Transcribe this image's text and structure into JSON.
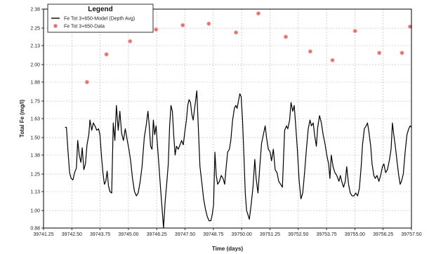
{
  "chart_data": {
    "type": "scatter",
    "title": "",
    "xlabel": "Time (days)",
    "ylabel": "Total Fe (mg/l)",
    "xlim": [
      39741.25,
      39757.5
    ],
    "ylim": [
      0.88,
      2.38
    ],
    "xticks": [
      39741.25,
      39742.5,
      39743.75,
      39745.0,
      39746.25,
      39747.5,
      39748.75,
      39750.0,
      39751.25,
      39752.5,
      39753.75,
      39755.0,
      39756.25,
      39757.5
    ],
    "xtick_labels": [
      "39741.25",
      "39742.50",
      "39743.75",
      "39745.00",
      "39746.25",
      "39747.50",
      "39748.75",
      "39750.00",
      "39751.25",
      "39752.50",
      "39753.75",
      "39755.00",
      "39756.25",
      "39757.50"
    ],
    "yticks": [
      0.88,
      1.0,
      1.13,
      1.25,
      1.38,
      1.5,
      1.63,
      1.75,
      1.88,
      2.0,
      2.13,
      2.25,
      2.38
    ],
    "ytick_labels": [
      "0.88",
      "1.00",
      "1.13",
      "1.25",
      "1.38",
      "1.50",
      "1.63",
      "1.75",
      "1.88",
      "2.00",
      "2.13",
      "2.25",
      "2.38"
    ],
    "grid": true,
    "legend": {
      "title": "Legend",
      "placement": "top-left",
      "entries": [
        {
          "label": "Fe Tot 3+650-Model (Depth Avg)",
          "marker": "line",
          "color": "#000000"
        },
        {
          "label": "Fe Tot 3+650-Data",
          "marker": "circle",
          "color": "#f06a6a"
        }
      ]
    },
    "series": [
      {
        "name": "Fe Tot 3+650-Model (Depth Avg)",
        "kind": "line",
        "color": "#000000",
        "points": [
          [
            39742.2,
            1.57
          ],
          [
            39742.26,
            1.57
          ],
          [
            39742.33,
            1.41
          ],
          [
            39742.4,
            1.26
          ],
          [
            39742.47,
            1.22
          ],
          [
            39742.55,
            1.21
          ],
          [
            39742.62,
            1.26
          ],
          [
            39742.7,
            1.29
          ],
          [
            39742.76,
            1.48
          ],
          [
            39742.83,
            1.38
          ],
          [
            39742.9,
            1.33
          ],
          [
            39742.96,
            1.43
          ],
          [
            39743.03,
            1.28
          ],
          [
            39743.1,
            1.32
          ],
          [
            39743.17,
            1.45
          ],
          [
            39743.25,
            1.52
          ],
          [
            39743.3,
            1.62
          ],
          [
            39743.38,
            1.55
          ],
          [
            39743.45,
            1.6
          ],
          [
            39743.52,
            1.58
          ],
          [
            39743.6,
            1.55
          ],
          [
            39743.68,
            1.56
          ],
          [
            39743.74,
            1.52
          ],
          [
            39743.82,
            1.35
          ],
          [
            39743.88,
            1.25
          ],
          [
            39743.94,
            1.18
          ],
          [
            39744.0,
            1.2
          ],
          [
            39744.06,
            1.27
          ],
          [
            39744.12,
            1.17
          ],
          [
            39744.18,
            1.13
          ],
          [
            39744.26,
            1.12
          ],
          [
            39744.33,
            1.6
          ],
          [
            39744.4,
            1.48
          ],
          [
            39744.47,
            1.72
          ],
          [
            39744.55,
            1.55
          ],
          [
            39744.62,
            1.68
          ],
          [
            39744.7,
            1.53
          ],
          [
            39744.78,
            1.48
          ],
          [
            39744.86,
            1.56
          ],
          [
            39744.95,
            1.48
          ],
          [
            39745.02,
            1.42
          ],
          [
            39745.1,
            1.34
          ],
          [
            39745.18,
            1.22
          ],
          [
            39745.27,
            1.13
          ],
          [
            39745.35,
            1.1
          ],
          [
            39745.43,
            1.12
          ],
          [
            39745.52,
            1.2
          ],
          [
            39745.6,
            1.3
          ],
          [
            39745.7,
            1.5
          ],
          [
            39745.78,
            1.58
          ],
          [
            39745.86,
            1.68
          ],
          [
            39745.92,
            1.58
          ],
          [
            39745.98,
            1.44
          ],
          [
            39746.04,
            1.42
          ],
          [
            39746.1,
            1.62
          ],
          [
            39746.16,
            1.52
          ],
          [
            39746.22,
            1.58
          ],
          [
            39746.28,
            1.45
          ],
          [
            39746.35,
            1.3
          ],
          [
            39746.42,
            1.15
          ],
          [
            39746.48,
            1.03
          ],
          [
            39746.55,
            0.88
          ],
          [
            39746.62,
            1.06
          ],
          [
            39746.7,
            1.2
          ],
          [
            39746.76,
            1.32
          ],
          [
            39746.82,
            1.58
          ],
          [
            39746.88,
            1.72
          ],
          [
            39746.94,
            1.68
          ],
          [
            39747.0,
            1.52
          ],
          [
            39747.06,
            1.38
          ],
          [
            39747.12,
            1.44
          ],
          [
            39747.2,
            1.42
          ],
          [
            39747.28,
            1.45
          ],
          [
            39747.35,
            1.48
          ],
          [
            39747.42,
            1.45
          ],
          [
            39747.5,
            1.55
          ],
          [
            39747.56,
            1.62
          ],
          [
            39747.62,
            1.72
          ],
          [
            39747.68,
            1.76
          ],
          [
            39747.74,
            1.74
          ],
          [
            39747.8,
            1.66
          ],
          [
            39747.86,
            1.62
          ],
          [
            39747.94,
            1.72
          ],
          [
            39748.02,
            1.82
          ],
          [
            39748.08,
            1.6
          ],
          [
            39748.16,
            1.3
          ],
          [
            39748.25,
            1.18
          ],
          [
            39748.32,
            1.08
          ],
          [
            39748.4,
            1.01
          ],
          [
            39748.48,
            0.96
          ],
          [
            39748.56,
            0.93
          ],
          [
            39748.64,
            0.93
          ],
          [
            39748.7,
            0.97
          ],
          [
            39748.76,
            1.04
          ],
          [
            39748.82,
            1.4
          ],
          [
            39748.88,
            1.24
          ],
          [
            39748.94,
            1.18
          ],
          [
            39749.02,
            1.2
          ],
          [
            39749.1,
            1.24
          ],
          [
            39749.18,
            1.22
          ],
          [
            39749.25,
            1.18
          ],
          [
            39749.32,
            1.3
          ],
          [
            39749.38,
            1.4
          ],
          [
            39749.46,
            1.42
          ],
          [
            39749.52,
            1.48
          ],
          [
            39749.6,
            1.62
          ],
          [
            39749.68,
            1.7
          ],
          [
            39749.74,
            1.72
          ],
          [
            39749.8,
            1.7
          ],
          [
            39749.86,
            1.75
          ],
          [
            39749.92,
            1.8
          ],
          [
            39749.98,
            1.78
          ],
          [
            39750.04,
            1.62
          ],
          [
            39750.1,
            1.38
          ],
          [
            39750.16,
            1.12
          ],
          [
            39750.22,
            1.0
          ],
          [
            39750.28,
            0.97
          ],
          [
            39750.34,
            0.94
          ],
          [
            39750.42,
            1.04
          ],
          [
            39750.5,
            1.16
          ],
          [
            39750.58,
            1.35
          ],
          [
            39750.64,
            1.22
          ],
          [
            39750.72,
            1.12
          ],
          [
            39750.8,
            1.3
          ],
          [
            39750.88,
            1.46
          ],
          [
            39750.96,
            1.52
          ],
          [
            39751.04,
            1.58
          ],
          [
            39751.1,
            1.5
          ],
          [
            39751.18,
            1.42
          ],
          [
            39751.26,
            1.4
          ],
          [
            39751.32,
            1.34
          ],
          [
            39751.4,
            1.42
          ],
          [
            39751.48,
            1.28
          ],
          [
            39751.56,
            1.26
          ],
          [
            39751.64,
            1.2
          ],
          [
            39751.72,
            1.18
          ],
          [
            39751.8,
            1.16
          ],
          [
            39751.9,
            1.55
          ],
          [
            39751.98,
            1.58
          ],
          [
            39752.04,
            1.56
          ],
          [
            39752.12,
            1.62
          ],
          [
            39752.18,
            1.74
          ],
          [
            39752.26,
            1.68
          ],
          [
            39752.32,
            1.72
          ],
          [
            39752.38,
            1.6
          ],
          [
            39752.46,
            1.42
          ],
          [
            39752.54,
            1.2
          ],
          [
            39752.62,
            1.08
          ],
          [
            39752.7,
            1.12
          ],
          [
            39752.78,
            1.26
          ],
          [
            39752.86,
            1.42
          ],
          [
            39752.94,
            1.56
          ],
          [
            39753.02,
            1.62
          ],
          [
            39753.08,
            1.58
          ],
          [
            39753.16,
            1.6
          ],
          [
            39753.22,
            1.52
          ],
          [
            39753.3,
            1.44
          ],
          [
            39753.36,
            1.57
          ],
          [
            39753.44,
            1.65
          ],
          [
            39753.52,
            1.6
          ],
          [
            39753.6,
            1.52
          ],
          [
            39753.68,
            1.46
          ],
          [
            39753.76,
            1.38
          ],
          [
            39753.84,
            1.32
          ],
          [
            39753.9,
            1.22
          ],
          [
            39753.96,
            1.38
          ],
          [
            39754.04,
            1.3
          ],
          [
            39754.12,
            1.26
          ],
          [
            39754.2,
            1.24
          ],
          [
            39754.3,
            1.2
          ],
          [
            39754.36,
            1.24
          ],
          [
            39754.42,
            1.2
          ],
          [
            39754.5,
            1.16
          ],
          [
            39754.58,
            1.2
          ],
          [
            39754.64,
            1.3
          ],
          [
            39754.72,
            1.18
          ],
          [
            39754.8,
            1.12
          ],
          [
            39754.88,
            1.1
          ],
          [
            39754.96,
            1.1
          ],
          [
            39755.04,
            1.12
          ],
          [
            39755.12,
            1.1
          ],
          [
            39755.2,
            1.15
          ],
          [
            39755.28,
            1.3
          ],
          [
            39755.34,
            1.45
          ],
          [
            39755.42,
            1.56
          ],
          [
            39755.5,
            1.58
          ],
          [
            39755.56,
            1.6
          ],
          [
            39755.62,
            1.54
          ],
          [
            39755.7,
            1.44
          ],
          [
            39755.76,
            1.32
          ],
          [
            39755.84,
            1.24
          ],
          [
            39755.9,
            1.22
          ],
          [
            39755.98,
            1.24
          ],
          [
            39756.06,
            1.2
          ],
          [
            39756.14,
            1.24
          ],
          [
            39756.22,
            1.3
          ],
          [
            39756.28,
            1.32
          ],
          [
            39756.36,
            1.26
          ],
          [
            39756.44,
            1.28
          ],
          [
            39756.52,
            1.34
          ],
          [
            39756.6,
            1.42
          ],
          [
            39756.66,
            1.6
          ],
          [
            39756.72,
            1.52
          ],
          [
            39756.78,
            1.45
          ],
          [
            39756.86,
            1.34
          ],
          [
            39756.94,
            1.24
          ],
          [
            39757.0,
            1.18
          ],
          [
            39757.06,
            1.2
          ],
          [
            39757.14,
            1.25
          ],
          [
            39757.22,
            1.4
          ],
          [
            39757.3,
            1.52
          ],
          [
            39757.38,
            1.56
          ],
          [
            39757.44,
            1.58
          ],
          [
            39757.5,
            1.57
          ]
        ]
      },
      {
        "name": "Fe Tot 3+650-Data",
        "kind": "scatter",
        "color": "#f06a6a",
        "points": [
          [
            39743.17,
            1.88
          ],
          [
            39744.03,
            2.07
          ],
          [
            39745.07,
            2.16
          ],
          [
            39746.22,
            2.24
          ],
          [
            39747.4,
            2.27
          ],
          [
            39748.55,
            2.28
          ],
          [
            39749.75,
            2.22
          ],
          [
            39750.74,
            2.35
          ],
          [
            39751.95,
            2.19
          ],
          [
            39753.03,
            2.09
          ],
          [
            39754.01,
            2.03
          ],
          [
            39755.01,
            2.23
          ],
          [
            39756.08,
            2.08
          ],
          [
            39757.08,
            2.08
          ],
          [
            39757.88,
            2.26
          ]
        ]
      }
    ]
  }
}
